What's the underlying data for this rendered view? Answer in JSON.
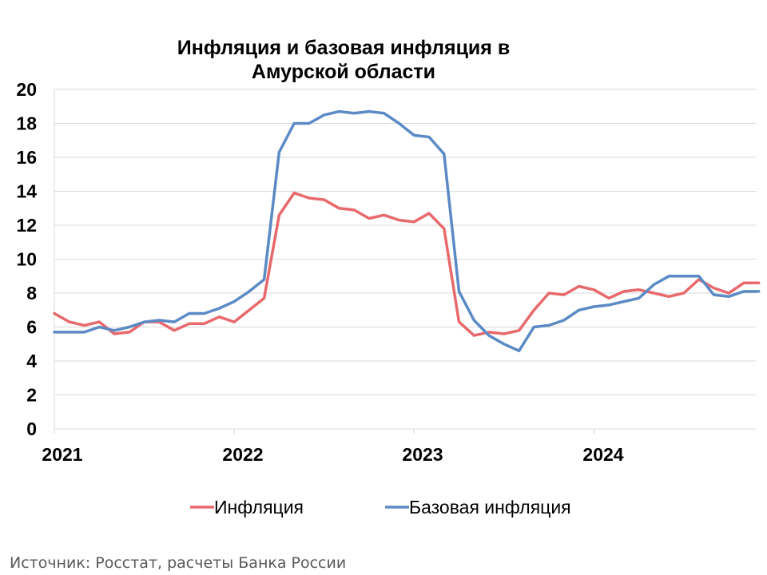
{
  "chart_data": {
    "type": "line",
    "title": [
      "Инфляция и базовая инфляция в",
      "Амурской области"
    ],
    "xlabel": "",
    "ylabel": "",
    "ylim": [
      0,
      20
    ],
    "yticks": [
      0,
      2,
      4,
      6,
      8,
      10,
      12,
      14,
      16,
      18,
      20
    ],
    "x_tick_labels": [
      "2021",
      "2022",
      "2023",
      "2024"
    ],
    "x_range_months": [
      "2021-01",
      "2024-12"
    ],
    "grid": "horizontal",
    "legend_position": "bottom",
    "series": [
      {
        "name": "Инфляция",
        "color": "#E8696B",
        "values": [
          6.8,
          6.3,
          6.1,
          6.3,
          5.6,
          5.7,
          6.3,
          6.3,
          5.8,
          6.2,
          6.2,
          6.6,
          6.3,
          7.0,
          7.7,
          12.6,
          13.9,
          13.6,
          13.5,
          13.0,
          12.9,
          12.4,
          12.6,
          12.3,
          12.2,
          12.7,
          11.8,
          6.3,
          5.5,
          5.7,
          5.6,
          5.8,
          7.0,
          8.0,
          7.9,
          8.4,
          8.2,
          7.7,
          8.1,
          8.2,
          8.0,
          7.8,
          8.0,
          8.8,
          8.3,
          8.0,
          8.6,
          8.6
        ]
      },
      {
        "name": "Базовая инфляция",
        "color": "#5B8AC5",
        "values": [
          5.7,
          5.7,
          5.7,
          6.0,
          5.8,
          6.0,
          6.3,
          6.4,
          6.3,
          6.8,
          6.8,
          7.1,
          7.5,
          8.1,
          8.8,
          16.3,
          18.0,
          18.0,
          18.5,
          18.7,
          18.6,
          18.7,
          18.6,
          18.0,
          17.3,
          17.2,
          16.2,
          8.1,
          6.4,
          5.5,
          5.0,
          4.6,
          6.0,
          6.1,
          6.4,
          7.0,
          7.2,
          7.3,
          7.5,
          7.7,
          8.5,
          9.0,
          9.0,
          9.0,
          7.9,
          7.8,
          8.1,
          8.1
        ]
      }
    ]
  },
  "source": "Источник: Росстат, расчеты Банка России"
}
